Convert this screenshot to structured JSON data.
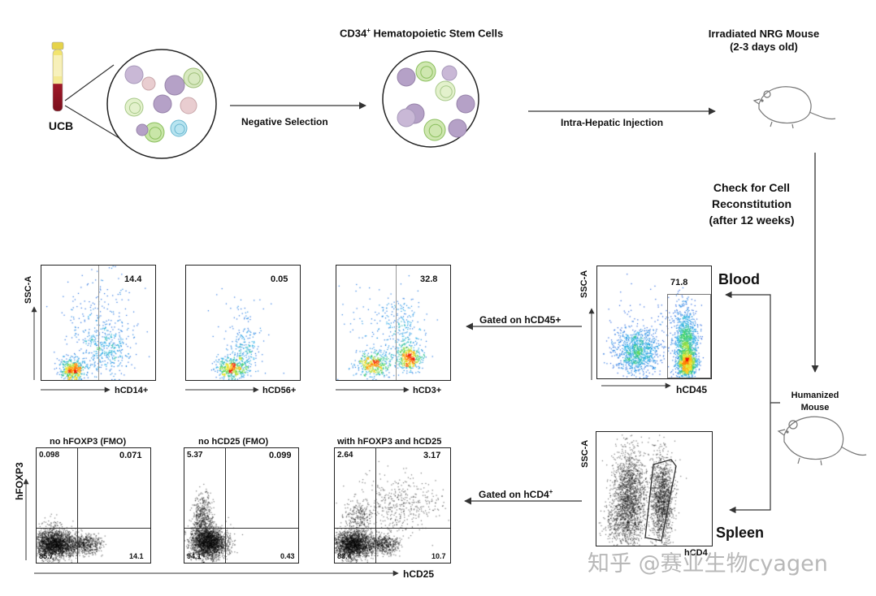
{
  "top": {
    "ucb_label": "UCB",
    "negative_selection": "Negative Selection",
    "cd34_title": "CD34",
    "cd34_sup": "+",
    "cd34_rest": " Hematopoietic Stem Cells",
    "mouse_title_line1": "Irradiated NRG Mouse",
    "mouse_title_line2": "(2-3 days old)",
    "injection": "Intra-Hepatic Injection",
    "check_line1": "Check for Cell",
    "check_line2": "Reconstitution",
    "check_line3": "(after 12 weeks)"
  },
  "middle": {
    "blood_label": "Blood",
    "gated_hcd45": "Gated on hCD45+",
    "humanized_line1": "Humanized",
    "humanized_line2": "Mouse",
    "blood_plot": {
      "ylabel": "SSC-A",
      "xlabel": "hCD45",
      "value": "71.8"
    },
    "plots": [
      {
        "ylabel": "SSC-A",
        "xlabel": "hCD14+",
        "value": "14.4"
      },
      {
        "ylabel": "",
        "xlabel": "hCD56+",
        "value": "0.05"
      },
      {
        "ylabel": "",
        "xlabel": "hCD3+",
        "value": "32.8"
      }
    ]
  },
  "bottom": {
    "spleen_label": "Spleen",
    "gated_hcd4": "Gated on hCD4",
    "gated_hcd4_sup": "+",
    "spleen_plot": {
      "ylabel": "SSC-A",
      "xlabel": "hCD4"
    },
    "ylabel": "hFOXP3",
    "xlabel": "hCD25",
    "plots": [
      {
        "title": "no hFOXP3 (FMO)",
        "ul": "0.098",
        "ur": "0.071",
        "ll": "85.7",
        "lr": "14.1"
      },
      {
        "title": "no hCD25 (FMO)",
        "ul": "5.37",
        "ur": "0.099",
        "ll": "94.1",
        "lr": "0.43"
      },
      {
        "title": "with hFOXP3 and hCD25",
        "ul": "2.64",
        "ur": "3.17",
        "ll": "83.4",
        "lr": "10.7"
      }
    ]
  },
  "watermark": "知乎 @赛业生物cyagen",
  "colors": {
    "ink": "#111111",
    "arrow": "#333333",
    "density_low": "#3a5bd9",
    "density_high": "#ff2a00"
  }
}
